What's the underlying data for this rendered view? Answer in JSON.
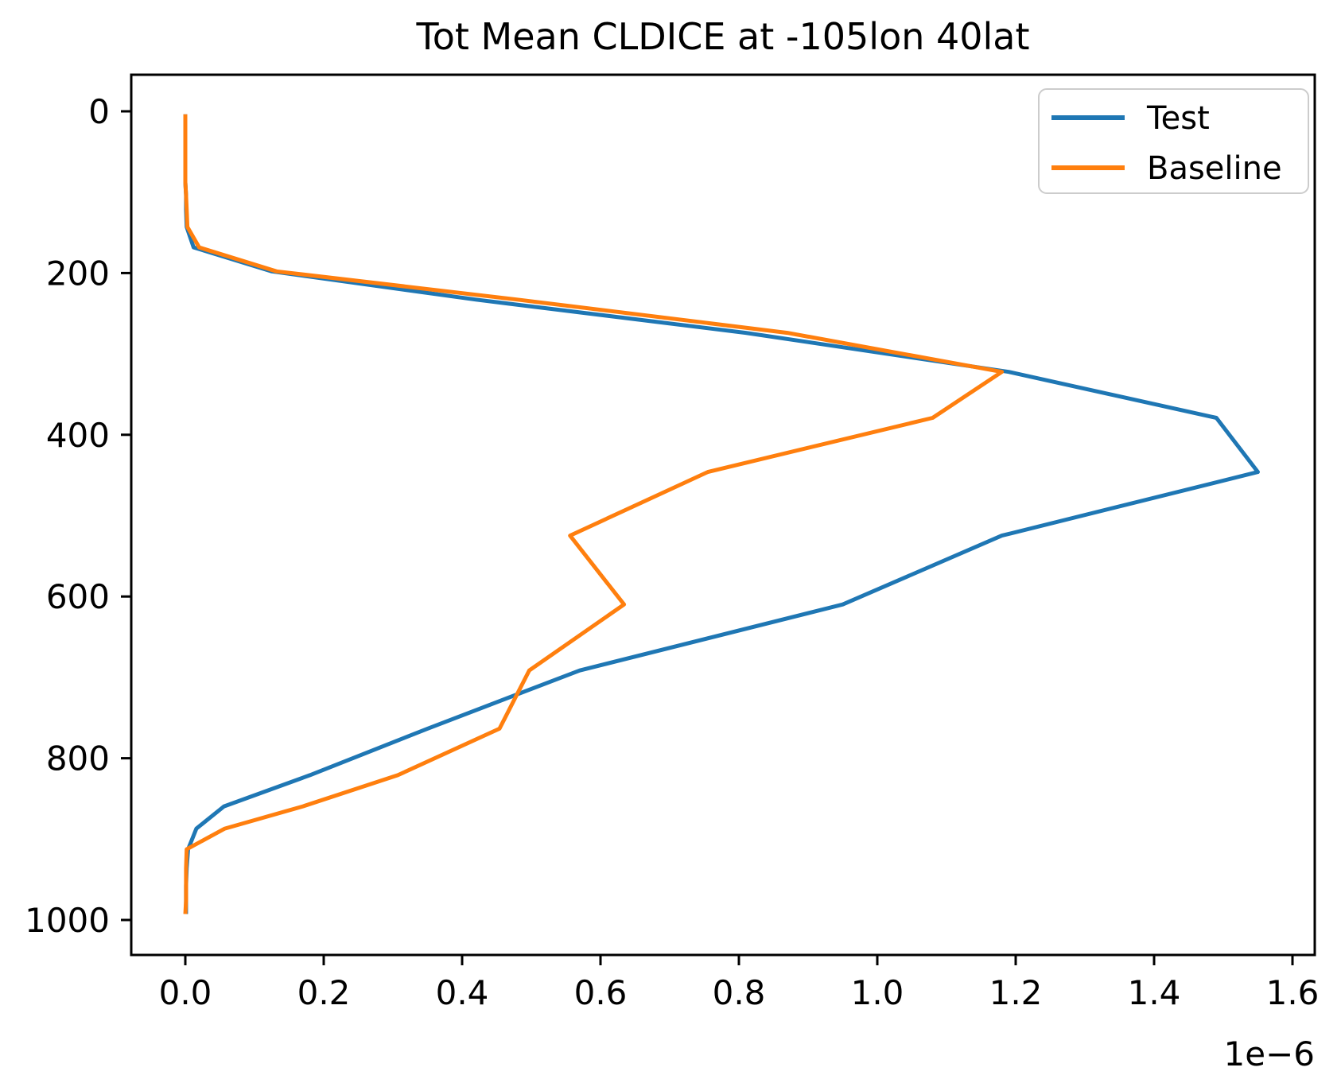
{
  "figure": {
    "title": "Tot Mean CLDICE at -105lon 40lat"
  },
  "chart_data": {
    "type": "line",
    "title": "Tot Mean CLDICE at -105lon 40lat",
    "xlabel": "",
    "ylabel": "",
    "x_axis": {
      "offset_label": "1e−6",
      "unit_scale": 1e-06,
      "tick_labels": [
        "0.0",
        "0.2",
        "0.4",
        "0.6",
        "0.8",
        "1.0",
        "1.2",
        "1.4",
        "1.6"
      ],
      "tick_values": [
        0.0,
        0.2,
        0.4,
        0.6,
        0.8,
        1.0,
        1.2,
        1.4,
        1.6
      ],
      "range": [
        -0.078,
        1.632
      ],
      "grid": false
    },
    "y_axis": {
      "tick_labels": [
        "0",
        "200",
        "400",
        "600",
        "800",
        "1000"
      ],
      "tick_values": [
        0,
        200,
        400,
        600,
        800,
        1000
      ],
      "range": [
        -26,
        1043
      ],
      "inverted": true,
      "grid": false
    },
    "legend": {
      "position": "upper right",
      "entries": [
        {
          "label": "Test",
          "color": "#1f77b4"
        },
        {
          "label": "Baseline",
          "color": "#ff7f0e"
        }
      ]
    },
    "pressure_levels_hPa": [
      3.6,
      7.6,
      14.4,
      24.6,
      35.9,
      43.2,
      51.7,
      61.5,
      73.8,
      87.8,
      103.3,
      121.5,
      143.0,
      168.2,
      197.9,
      232.8,
      273.9,
      322.2,
      379.1,
      446.0,
      524.7,
      609.8,
      691.4,
      763.4,
      820.9,
      859.5,
      887.0,
      912.6,
      936.2,
      957.5,
      976.3,
      992.6
    ],
    "series": [
      {
        "name": "Test",
        "color": "#1f77b4",
        "values_1e_6": [
          0.0,
          0.0,
          0.0,
          0.0,
          0.0,
          0.0,
          0.0,
          0.0,
          0.0,
          0.0,
          0.001,
          0.001,
          0.002,
          0.012,
          0.125,
          0.42,
          0.81,
          1.19,
          1.49,
          1.55,
          1.18,
          0.95,
          0.57,
          0.35,
          0.18,
          0.056,
          0.016,
          0.004,
          0.002,
          0.001,
          0.001,
          0.001
        ]
      },
      {
        "name": "Baseline",
        "color": "#ff7f0e",
        "values_1e_6": [
          0.0,
          0.0,
          0.0,
          0.0,
          0.0,
          0.0,
          0.0,
          0.0,
          0.0,
          0.0,
          0.001,
          0.002,
          0.003,
          0.02,
          0.132,
          0.48,
          0.87,
          1.18,
          1.08,
          0.755,
          0.556,
          0.634,
          0.497,
          0.454,
          0.307,
          0.17,
          0.057,
          0.002,
          0.001,
          0.001,
          0.001,
          0.0
        ]
      }
    ]
  }
}
